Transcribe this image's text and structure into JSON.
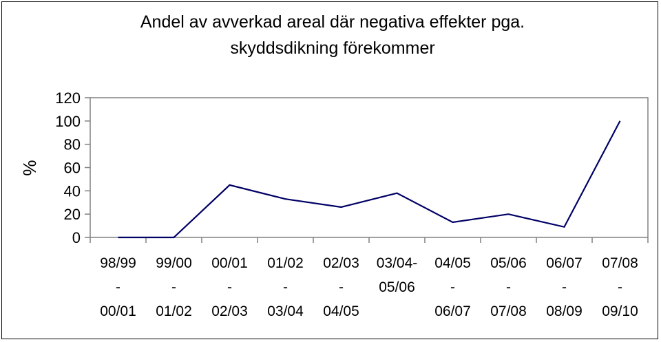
{
  "chart_data": {
    "type": "line",
    "title": "Andel av avverkad areal där negativa effekter pga. skyddsdikning förekommer",
    "title_lines": [
      "Andel av avverkad areal där negativa effekter pga.",
      "skyddsdikning förekommer"
    ],
    "ylabel": "%",
    "xlabel": "",
    "ylim": [
      0,
      120
    ],
    "yticks": [
      0,
      20,
      40,
      60,
      80,
      100,
      120
    ],
    "grid": false,
    "legend": "none",
    "categories": [
      [
        "98/99",
        "-",
        "00/01"
      ],
      [
        "99/00",
        "-",
        "01/02"
      ],
      [
        "00/01",
        "-",
        "02/03"
      ],
      [
        "01/02",
        "-",
        "03/04"
      ],
      [
        "02/03",
        "-",
        "04/05"
      ],
      [
        "03/04-",
        "05/06"
      ],
      [
        "04/05",
        "-",
        "06/07"
      ],
      [
        "05/06",
        "-",
        "07/08"
      ],
      [
        "06/07",
        "-",
        "08/09"
      ],
      [
        "07/08",
        "-",
        "09/10"
      ]
    ],
    "series": [
      {
        "values": [
          0,
          0,
          45,
          33,
          26,
          38,
          13,
          20,
          9,
          100
        ],
        "color": "#000066"
      }
    ]
  }
}
